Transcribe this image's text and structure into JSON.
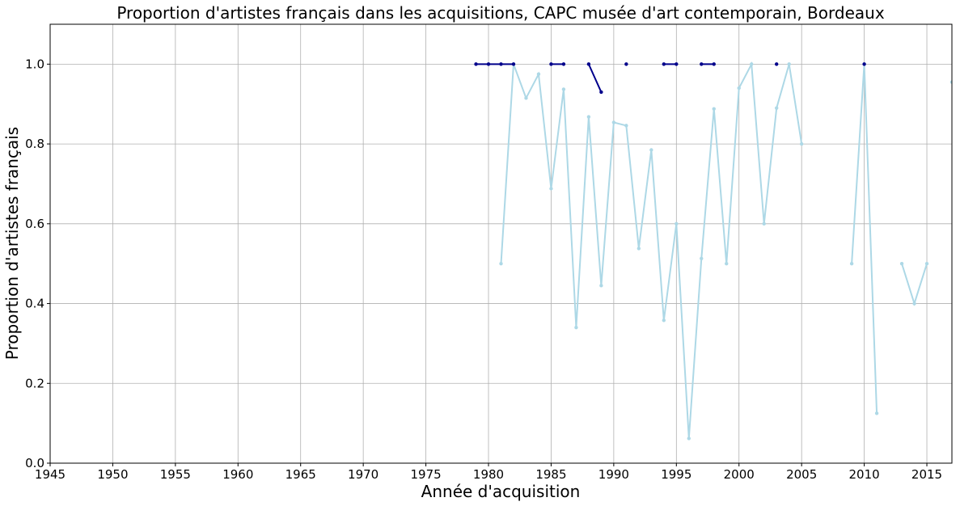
{
  "chart_data": {
    "type": "line",
    "title": "Proportion d'artistes français dans les acquisitions, CAPC musée d'art contemporain, Bordeaux",
    "xlabel": "Année d'acquisition",
    "ylabel": "Proportion d'artistes français",
    "xlim": [
      1945,
      2017
    ],
    "ylim": [
      0,
      1.1
    ],
    "grid": true,
    "x_ticks": [
      1945,
      1950,
      1955,
      1960,
      1965,
      1970,
      1975,
      1980,
      1985,
      1990,
      1995,
      2000,
      2005,
      2010,
      2015
    ],
    "y_ticks": [
      0.0,
      0.2,
      0.4,
      0.6,
      0.8,
      1.0
    ],
    "series": [
      {
        "color": "#ADD8E6",
        "points": [
          [
            1981,
            0.5
          ],
          [
            1982,
            1.0
          ],
          [
            1983,
            0.915
          ],
          [
            1984,
            0.975
          ],
          [
            1985,
            0.688
          ],
          [
            1986,
            0.937
          ],
          [
            1987,
            0.34
          ],
          [
            1988,
            0.868
          ],
          [
            1989,
            0.445
          ],
          [
            1990,
            0.854
          ],
          [
            1991,
            0.846
          ],
          [
            1992,
            0.538
          ],
          [
            1993,
            0.785
          ],
          [
            1994,
            0.358
          ],
          [
            1995,
            0.6
          ],
          [
            1996,
            0.062
          ],
          [
            1997,
            0.513
          ],
          [
            1998,
            0.888
          ],
          [
            1999,
            0.5
          ],
          [
            2000,
            0.94
          ],
          [
            2001,
            1.0
          ],
          [
            2002,
            0.6
          ],
          [
            2003,
            0.89
          ],
          [
            2004,
            1.0
          ],
          [
            2005,
            0.8
          ],
          [
            2009,
            0.5
          ],
          [
            2010,
            1.0
          ],
          [
            2011,
            0.125
          ],
          [
            2013,
            0.5
          ],
          [
            2014,
            0.4
          ],
          [
            2015,
            0.5
          ],
          [
            2017,
            0.955
          ]
        ]
      },
      {
        "color": "#00008B",
        "points": [
          [
            1979,
            1.0
          ],
          [
            1980,
            1.0
          ],
          [
            1981,
            1.0
          ],
          [
            1982,
            1.0
          ],
          [
            1985,
            1.0
          ],
          [
            1986,
            1.0
          ],
          [
            1988,
            1.0
          ],
          [
            1989,
            0.93
          ],
          [
            1991,
            1.0
          ],
          [
            1994,
            1.0
          ],
          [
            1995,
            1.0
          ],
          [
            1997,
            1.0
          ],
          [
            1998,
            1.0
          ],
          [
            2003,
            1.0
          ],
          [
            2010,
            1.0
          ]
        ]
      }
    ]
  }
}
